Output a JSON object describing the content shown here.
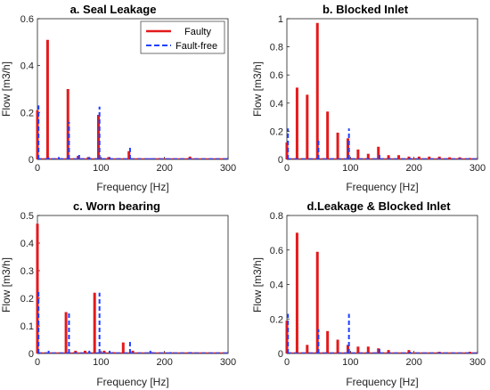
{
  "chart_data": [
    {
      "type": "bar",
      "title": "a. Seal Leakage",
      "xlabel": "Frequency [Hz]",
      "ylabel": "Flow [m3/h]",
      "xlim": [
        0,
        300
      ],
      "ylim": [
        0,
        0.6
      ],
      "xticks": [
        "0",
        "100",
        "200",
        "300"
      ],
      "yticks": [
        "0",
        "0.2",
        "0.4",
        "0.6"
      ],
      "legend": {
        "placement": "top-right",
        "entries": [
          "Faulty",
          "Fault-free"
        ]
      },
      "series": [
        {
          "name": "Faulty",
          "color": "#e31a1c",
          "style": "solid",
          "x": [
            0,
            16,
            48,
            64,
            80,
            96,
            112,
            128,
            144,
            160,
            192,
            240,
            288
          ],
          "values": [
            0.21,
            0.51,
            0.3,
            0.015,
            0.01,
            0.19,
            0.01,
            0.005,
            0.035,
            0.005,
            0.005,
            0.012,
            0.004
          ]
        },
        {
          "name": "Fault-free",
          "color": "#1f3fff",
          "style": "dashed",
          "x": [
            0,
            16,
            32,
            48,
            64,
            80,
            96,
            112,
            128,
            144,
            176,
            208,
            240,
            272
          ],
          "values": [
            0.23,
            0.008,
            0.01,
            0.16,
            0.02,
            0.01,
            0.225,
            0.01,
            0.005,
            0.05,
            0.005,
            0.003,
            0.003,
            0.002
          ]
        }
      ]
    },
    {
      "type": "bar",
      "title": "b. Blocked Inlet",
      "xlabel": "Frequency [Hz]",
      "ylabel": "Flow [m3/h]",
      "xlim": [
        0,
        300
      ],
      "ylim": [
        0,
        1
      ],
      "xticks": [
        "0",
        "100",
        "200",
        "300"
      ],
      "yticks": [
        "0",
        "0.2",
        "0.4",
        "0.6",
        "0.8",
        "1"
      ],
      "series": [
        {
          "name": "Faulty",
          "color": "#e31a1c",
          "style": "solid",
          "x": [
            0,
            16,
            32,
            48,
            64,
            80,
            96,
            112,
            128,
            144,
            160,
            176,
            192,
            208,
            224,
            240,
            256,
            272,
            288
          ],
          "values": [
            0.12,
            0.51,
            0.46,
            0.97,
            0.34,
            0.19,
            0.15,
            0.07,
            0.04,
            0.09,
            0.03,
            0.03,
            0.02,
            0.02,
            0.02,
            0.02,
            0.015,
            0.015,
            0.01
          ]
        },
        {
          "name": "Fault-free",
          "color": "#1f3fff",
          "style": "dashed",
          "x": [
            0,
            48,
            96,
            144,
            192
          ],
          "values": [
            0.22,
            0.14,
            0.22,
            0.05,
            0.01
          ]
        }
      ]
    },
    {
      "type": "bar",
      "title": "c. Worn bearing",
      "xlabel": "Frequency [Hz]",
      "ylabel": "Flow [m3/h]",
      "xlim": [
        0,
        300
      ],
      "ylim": [
        0,
        0.5
      ],
      "xticks": [
        "0",
        "100",
        "200",
        "300"
      ],
      "yticks": [
        "0",
        "0.1",
        "0.2",
        "0.3",
        "0.4",
        "0.5"
      ],
      "series": [
        {
          "name": "Faulty",
          "color": "#e31a1c",
          "style": "solid",
          "x": [
            0,
            45,
            60,
            75,
            90,
            105,
            120,
            135,
            150,
            180,
            240
          ],
          "values": [
            0.47,
            0.15,
            0.01,
            0.01,
            0.22,
            0.01,
            0.005,
            0.04,
            0.01,
            0.005,
            0.005
          ]
        },
        {
          "name": "Fault-free",
          "color": "#1f3fff",
          "style": "dashed",
          "x": [
            0,
            16,
            48,
            80,
            96,
            112,
            144,
            176,
            208,
            240,
            272
          ],
          "values": [
            0.23,
            0.01,
            0.15,
            0.01,
            0.22,
            0.01,
            0.045,
            0.01,
            0.005,
            0.005,
            0.003
          ]
        }
      ]
    },
    {
      "type": "bar",
      "title": "d.Leakage & Blocked Inlet",
      "xlabel": "Frequency [Hz]",
      "ylabel": "Flow [m3/h]",
      "xlim": [
        0,
        300
      ],
      "ylim": [
        0,
        0.8
      ],
      "xticks": [
        "0",
        "100",
        "200",
        "300"
      ],
      "yticks": [
        "0",
        "0.2",
        "0.4",
        "0.6",
        "0.8"
      ],
      "series": [
        {
          "name": "Faulty",
          "color": "#e31a1c",
          "style": "solid",
          "x": [
            0,
            16,
            32,
            48,
            64,
            80,
            96,
            112,
            128,
            144,
            160,
            192,
            240,
            288
          ],
          "values": [
            0.19,
            0.7,
            0.05,
            0.59,
            0.13,
            0.08,
            0.05,
            0.04,
            0.04,
            0.03,
            0.02,
            0.02,
            0.01,
            0.01
          ]
        },
        {
          "name": "Fault-free",
          "color": "#1f3fff",
          "style": "dashed",
          "x": [
            0,
            48,
            96,
            144,
            192,
            240
          ],
          "values": [
            0.23,
            0.14,
            0.23,
            0.04,
            0.01,
            0.005
          ]
        }
      ]
    }
  ]
}
